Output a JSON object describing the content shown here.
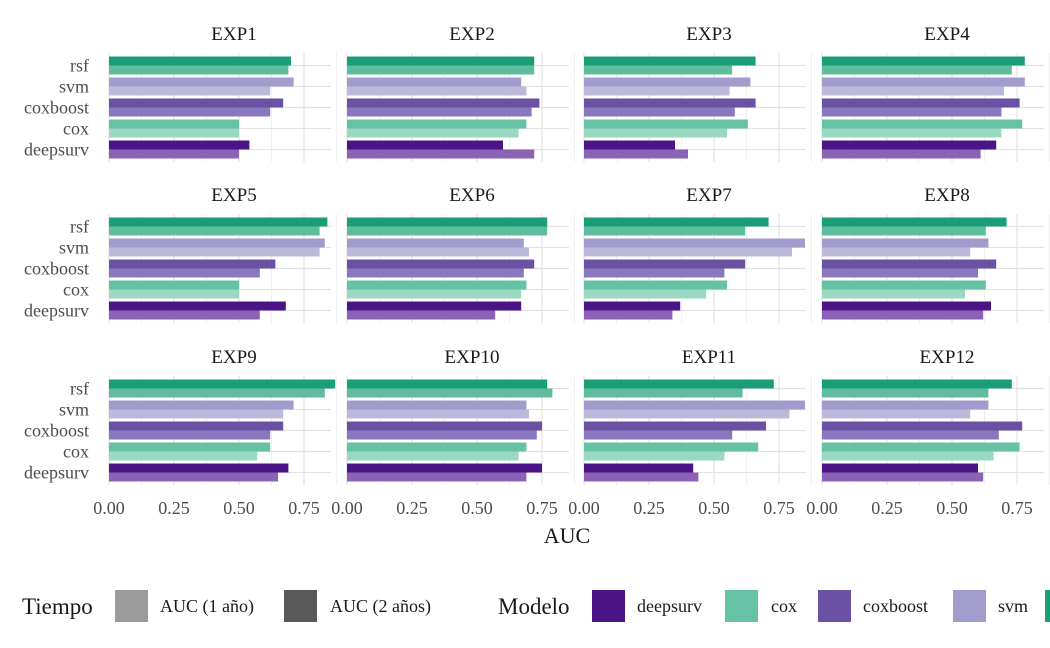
{
  "chart_data": {
    "type": "bar",
    "orientation": "horizontal",
    "faceted": true,
    "facet_grid": [
      3,
      4
    ],
    "xlabel": "AUC",
    "ylabel": "",
    "xlim": [
      0,
      0.9
    ],
    "x_ticks": [
      "0.00",
      "0.25",
      "0.50",
      "0.75"
    ],
    "x_tick_values": [
      0,
      0.25,
      0.5,
      0.75
    ],
    "categories": [
      "rsf",
      "svm",
      "coxboost",
      "cox",
      "deepsurv"
    ],
    "grid": true,
    "legend": {
      "placement": "bottom",
      "groups": [
        {
          "title": "Tiempo",
          "items": [
            {
              "label": "AUC (1 año)",
              "color": "#9b9b9b"
            },
            {
              "label": "AUC (2 años)",
              "color": "#595959"
            }
          ]
        },
        {
          "title": "Modelo",
          "items": [
            {
              "label": "deepsurv",
              "color": "#4b1587"
            },
            {
              "label": "cox",
              "color": "#66c2a5"
            },
            {
              "label": "coxboost",
              "color": "#6a51a3"
            },
            {
              "label": "svm",
              "color": "#a19ccb"
            },
            {
              "label": "rsf",
              "color": "#1b9e77"
            }
          ]
        }
      ]
    },
    "colors": {
      "rsf": {
        "y2": "#1b9e77",
        "y1": "#5fbc9f"
      },
      "svm": {
        "y2": "#a19ccb",
        "y1": "#bdb9db"
      },
      "coxboost": {
        "y2": "#6a51a3",
        "y1": "#8a78be"
      },
      "cox": {
        "y2": "#66c2a5",
        "y1": "#9bd8c2"
      },
      "deepsurv": {
        "y2": "#4b1587",
        "y1": "#8b62b6"
      }
    },
    "facets": [
      {
        "title": "EXP1",
        "auc_2y": {
          "rsf": 0.7,
          "svm": 0.71,
          "coxboost": 0.67,
          "cox": 0.5,
          "deepsurv": 0.54
        },
        "auc_1y": {
          "rsf": 0.69,
          "svm": 0.62,
          "coxboost": 0.62,
          "cox": 0.5,
          "deepsurv": 0.5
        }
      },
      {
        "title": "EXP2",
        "auc_2y": {
          "rsf": 0.72,
          "svm": 0.67,
          "coxboost": 0.74,
          "cox": 0.69,
          "deepsurv": 0.6
        },
        "auc_1y": {
          "rsf": 0.72,
          "svm": 0.69,
          "coxboost": 0.71,
          "cox": 0.66,
          "deepsurv": 0.72
        }
      },
      {
        "title": "EXP3",
        "auc_2y": {
          "rsf": 0.66,
          "svm": 0.64,
          "coxboost": 0.66,
          "cox": 0.63,
          "deepsurv": 0.35
        },
        "auc_1y": {
          "rsf": 0.57,
          "svm": 0.56,
          "coxboost": 0.58,
          "cox": 0.55,
          "deepsurv": 0.4
        }
      },
      {
        "title": "EXP4",
        "auc_2y": {
          "rsf": 0.78,
          "svm": 0.78,
          "coxboost": 0.76,
          "cox": 0.77,
          "deepsurv": 0.67
        },
        "auc_1y": {
          "rsf": 0.73,
          "svm": 0.7,
          "coxboost": 0.69,
          "cox": 0.69,
          "deepsurv": 0.61
        }
      },
      {
        "title": "EXP5",
        "auc_2y": {
          "rsf": 0.84,
          "svm": 0.83,
          "coxboost": 0.64,
          "cox": 0.5,
          "deepsurv": 0.68
        },
        "auc_1y": {
          "rsf": 0.81,
          "svm": 0.81,
          "coxboost": 0.58,
          "cox": 0.5,
          "deepsurv": 0.58
        }
      },
      {
        "title": "EXP6",
        "auc_2y": {
          "rsf": 0.77,
          "svm": 0.68,
          "coxboost": 0.72,
          "cox": 0.69,
          "deepsurv": 0.67
        },
        "auc_1y": {
          "rsf": 0.77,
          "svm": 0.7,
          "coxboost": 0.68,
          "cox": 0.67,
          "deepsurv": 0.57
        }
      },
      {
        "title": "EXP7",
        "auc_2y": {
          "rsf": 0.71,
          "svm": 0.85,
          "coxboost": 0.62,
          "cox": 0.55,
          "deepsurv": 0.37
        },
        "auc_1y": {
          "rsf": 0.62,
          "svm": 0.8,
          "coxboost": 0.54,
          "cox": 0.47,
          "deepsurv": 0.34
        }
      },
      {
        "title": "EXP8",
        "auc_2y": {
          "rsf": 0.71,
          "svm": 0.64,
          "coxboost": 0.67,
          "cox": 0.63,
          "deepsurv": 0.65
        },
        "auc_1y": {
          "rsf": 0.63,
          "svm": 0.57,
          "coxboost": 0.6,
          "cox": 0.55,
          "deepsurv": 0.62
        }
      },
      {
        "title": "EXP9",
        "auc_2y": {
          "rsf": 0.87,
          "svm": 0.71,
          "coxboost": 0.67,
          "cox": 0.62,
          "deepsurv": 0.69
        },
        "auc_1y": {
          "rsf": 0.83,
          "svm": 0.67,
          "coxboost": 0.62,
          "cox": 0.57,
          "deepsurv": 0.65
        }
      },
      {
        "title": "EXP10",
        "auc_2y": {
          "rsf": 0.77,
          "svm": 0.69,
          "coxboost": 0.75,
          "cox": 0.69,
          "deepsurv": 0.75
        },
        "auc_1y": {
          "rsf": 0.79,
          "svm": 0.7,
          "coxboost": 0.73,
          "cox": 0.66,
          "deepsurv": 0.69
        }
      },
      {
        "title": "EXP11",
        "auc_2y": {
          "rsf": 0.73,
          "svm": 0.85,
          "coxboost": 0.7,
          "cox": 0.67,
          "deepsurv": 0.42
        },
        "auc_1y": {
          "rsf": 0.61,
          "svm": 0.79,
          "coxboost": 0.57,
          "cox": 0.54,
          "deepsurv": 0.44
        }
      },
      {
        "title": "EXP12",
        "auc_2y": {
          "rsf": 0.73,
          "svm": 0.64,
          "coxboost": 0.77,
          "cox": 0.76,
          "deepsurv": 0.6
        },
        "auc_1y": {
          "rsf": 0.64,
          "svm": 0.57,
          "coxboost": 0.68,
          "cox": 0.66,
          "deepsurv": 0.62
        }
      }
    ]
  }
}
